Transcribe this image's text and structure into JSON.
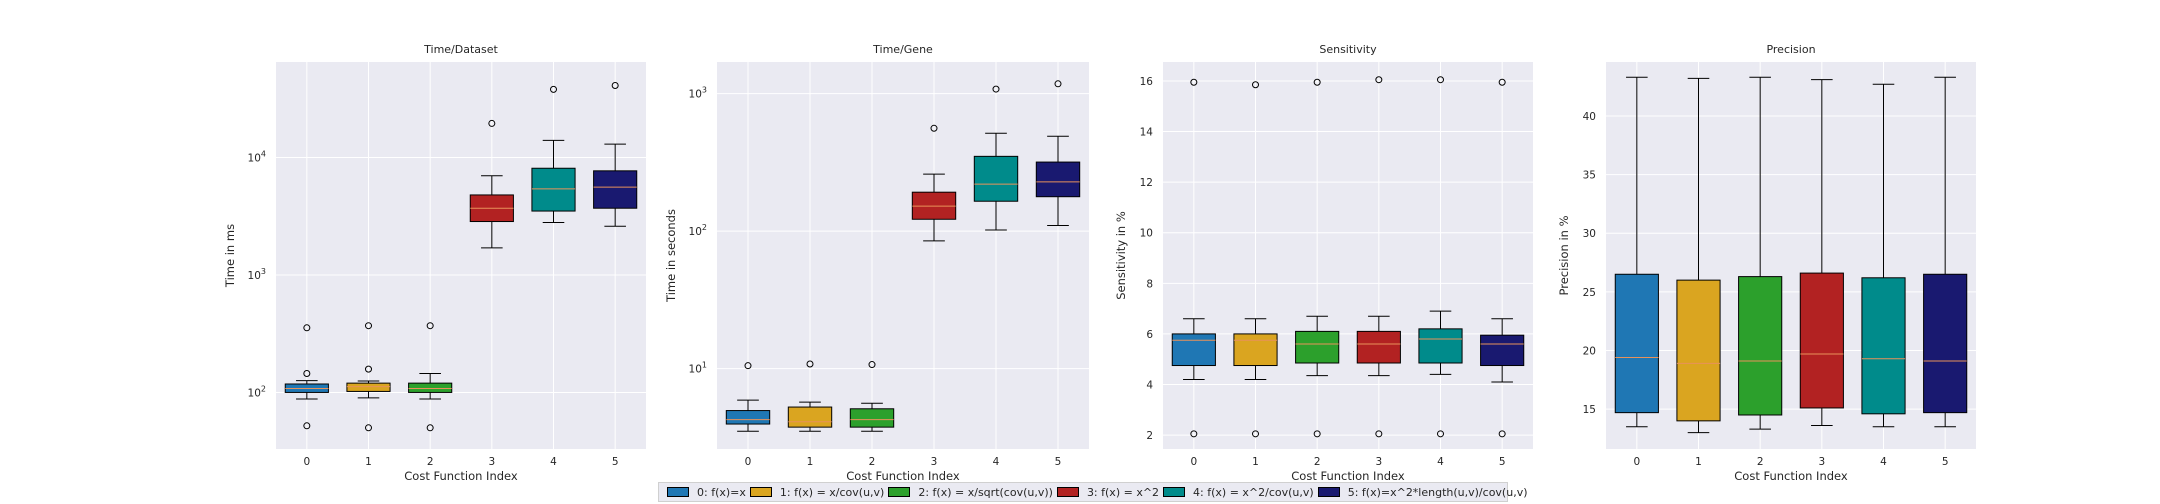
{
  "legend": [
    {
      "label": "0: f(x)=x",
      "color": "#1f77b4"
    },
    {
      "label": "1: f(x) = x/cov(u,v)",
      "color": "#daa520"
    },
    {
      "label": "2: f(x) = x/sqrt(cov(u,v))",
      "color": "#2ca02c"
    },
    {
      "label": "3: f(x) = x^2",
      "color": "#b22222"
    },
    {
      "label": "4: f(x) = x^2/cov(u,v)",
      "color": "#008b8b"
    },
    {
      "label": "5: f(x)=x^2*length(u,v)/cov(u,v)",
      "color": "#191970"
    }
  ],
  "chart_data": [
    {
      "type": "box",
      "title": "Time/Dataset",
      "xlabel": "Cost Function Index",
      "ylabel": "Time in ms",
      "yscale": "log",
      "ylim": [
        33,
        65000
      ],
      "yticks": [
        {
          "v": 100,
          "b": "10",
          "e": "2"
        },
        {
          "v": 1000,
          "b": "10",
          "e": "3"
        },
        {
          "v": 10000,
          "b": "10",
          "e": "4"
        }
      ],
      "categories": [
        "0",
        "1",
        "2",
        "3",
        "4",
        "5"
      ],
      "boxes": [
        {
          "whislo": 88,
          "q1": 100,
          "med": 108,
          "q3": 118,
          "whishi": 126,
          "fliers": [
            52,
            145,
            355
          ]
        },
        {
          "whislo": 90,
          "q1": 102,
          "med": 112,
          "q3": 120,
          "whishi": 125,
          "fliers": [
            50,
            158,
            370
          ]
        },
        {
          "whislo": 88,
          "q1": 100,
          "med": 108,
          "q3": 120,
          "whishi": 145,
          "fliers": [
            50,
            370
          ]
        },
        {
          "whislo": 1700,
          "q1": 2850,
          "med": 3700,
          "q3": 4800,
          "whishi": 7000,
          "fliers": [
            19500
          ]
        },
        {
          "whislo": 2800,
          "q1": 3500,
          "med": 5400,
          "q3": 8100,
          "whishi": 14000,
          "fliers": [
            38000
          ]
        },
        {
          "whislo": 2600,
          "q1": 3700,
          "med": 5600,
          "q3": 7700,
          "whishi": 13000,
          "fliers": [
            41000
          ]
        }
      ]
    },
    {
      "type": "box",
      "title": "Time/Gene",
      "xlabel": "Cost Function Index",
      "ylabel": "Time in seconds",
      "yscale": "log",
      "ylim": [
        2.6,
        1700
      ],
      "yticks": [
        {
          "v": 10,
          "b": "10",
          "e": "1"
        },
        {
          "v": 100,
          "b": "10",
          "e": "2"
        },
        {
          "v": 1000,
          "b": "10",
          "e": "3"
        }
      ],
      "categories": [
        "0",
        "1",
        "2",
        "3",
        "4",
        "5"
      ],
      "boxes": [
        {
          "whislo": 3.5,
          "q1": 3.95,
          "med": 4.25,
          "q3": 4.95,
          "whishi": 5.9,
          "fliers": [
            10.5
          ]
        },
        {
          "whislo": 3.5,
          "q1": 3.75,
          "med": 4.1,
          "q3": 5.25,
          "whishi": 5.7,
          "fliers": [
            10.8
          ]
        },
        {
          "whislo": 3.5,
          "q1": 3.75,
          "med": 4.25,
          "q3": 5.1,
          "whishi": 5.6,
          "fliers": [
            10.7
          ]
        },
        {
          "whislo": 85,
          "q1": 122,
          "med": 152,
          "q3": 192,
          "whishi": 260,
          "fliers": [
            560
          ]
        },
        {
          "whislo": 102,
          "q1": 165,
          "med": 220,
          "q3": 350,
          "whishi": 515,
          "fliers": [
            1080
          ]
        },
        {
          "whislo": 110,
          "q1": 178,
          "med": 228,
          "q3": 318,
          "whishi": 490,
          "fliers": [
            1180
          ]
        }
      ]
    },
    {
      "type": "box",
      "title": "Sensitivity",
      "xlabel": "Cost Function Index",
      "ylabel": "Sensitivity in %",
      "yscale": "linear",
      "ylim": [
        1.45,
        16.75
      ],
      "yticks": [
        {
          "v": 2,
          "t": "2"
        },
        {
          "v": 4,
          "t": "4"
        },
        {
          "v": 6,
          "t": "6"
        },
        {
          "v": 8,
          "t": "8"
        },
        {
          "v": 10,
          "t": "10"
        },
        {
          "v": 12,
          "t": "12"
        },
        {
          "v": 14,
          "t": "14"
        },
        {
          "v": 16,
          "t": "16"
        }
      ],
      "categories": [
        "0",
        "1",
        "2",
        "3",
        "4",
        "5"
      ],
      "boxes": [
        {
          "whislo": 4.2,
          "q1": 4.75,
          "med": 5.75,
          "q3": 6.0,
          "whishi": 6.6,
          "fliers": [
            2.05,
            15.95
          ]
        },
        {
          "whislo": 4.2,
          "q1": 4.75,
          "med": 5.75,
          "q3": 6.0,
          "whishi": 6.6,
          "fliers": [
            2.05,
            15.85
          ]
        },
        {
          "whislo": 4.35,
          "q1": 4.85,
          "med": 5.6,
          "q3": 6.1,
          "whishi": 6.7,
          "fliers": [
            2.05,
            15.95
          ]
        },
        {
          "whislo": 4.35,
          "q1": 4.85,
          "med": 5.6,
          "q3": 6.1,
          "whishi": 6.7,
          "fliers": [
            2.05,
            16.05
          ]
        },
        {
          "whislo": 4.4,
          "q1": 4.85,
          "med": 5.8,
          "q3": 6.2,
          "whishi": 6.9,
          "fliers": [
            2.05,
            16.05
          ]
        },
        {
          "whislo": 4.1,
          "q1": 4.75,
          "med": 5.6,
          "q3": 5.95,
          "whishi": 6.6,
          "fliers": [
            2.05,
            15.95
          ]
        }
      ]
    },
    {
      "type": "box",
      "title": "Precision",
      "xlabel": "Cost Function Index",
      "ylabel": "Precision in %",
      "yscale": "linear",
      "ylim": [
        11.6,
        44.6
      ],
      "yticks": [
        {
          "v": 15,
          "t": "15"
        },
        {
          "v": 20,
          "t": "20"
        },
        {
          "v": 25,
          "t": "25"
        },
        {
          "v": 30,
          "t": "30"
        },
        {
          "v": 35,
          "t": "35"
        },
        {
          "v": 40,
          "t": "40"
        }
      ],
      "categories": [
        "0",
        "1",
        "2",
        "3",
        "4",
        "5"
      ],
      "boxes": [
        {
          "whislo": 13.5,
          "q1": 14.7,
          "med": 19.4,
          "q3": 26.5,
          "whishi": 43.3,
          "fliers": []
        },
        {
          "whislo": 13.0,
          "q1": 14.0,
          "med": 18.9,
          "q3": 26.0,
          "whishi": 43.2,
          "fliers": []
        },
        {
          "whislo": 13.3,
          "q1": 14.5,
          "med": 19.1,
          "q3": 26.3,
          "whishi": 43.3,
          "fliers": []
        },
        {
          "whislo": 13.6,
          "q1": 15.1,
          "med": 19.7,
          "q3": 26.6,
          "whishi": 43.1,
          "fliers": []
        },
        {
          "whislo": 13.5,
          "q1": 14.6,
          "med": 19.3,
          "q3": 26.2,
          "whishi": 42.7,
          "fliers": []
        },
        {
          "whislo": 13.5,
          "q1": 14.7,
          "med": 19.1,
          "q3": 26.5,
          "whishi": 43.3,
          "fliers": []
        }
      ]
    }
  ]
}
